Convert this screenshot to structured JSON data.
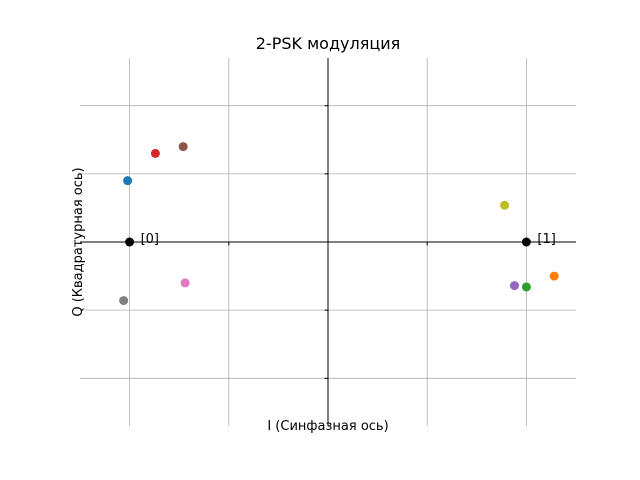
{
  "chart_data": {
    "type": "scatter",
    "title": "2-PSK модуляция",
    "xlabel": "I (Синфазная ось)",
    "ylabel": "Q (Квадратурная ось)",
    "xlim": [
      -1.25,
      1.25
    ],
    "ylim": [
      -1.35,
      1.35
    ],
    "xticks": [
      -1.0,
      -0.5,
      0.0,
      0.5,
      1.0
    ],
    "yticks": [
      -1.0,
      -0.5,
      0.0,
      0.5,
      1.0
    ],
    "grid": true,
    "axes_style": "centered spines",
    "constellation": [
      {
        "label": "[0]",
        "x": -1.0,
        "y": 0.0,
        "color": "#000000"
      },
      {
        "label": "[1]",
        "x": 1.0,
        "y": 0.0,
        "color": "#000000"
      }
    ],
    "points": [
      {
        "x": -1.01,
        "y": 0.45,
        "color": "#1f77b4"
      },
      {
        "x": 1.14,
        "y": -0.25,
        "color": "#ff7f0e"
      },
      {
        "x": 1.0,
        "y": -0.33,
        "color": "#2ca02c"
      },
      {
        "x": -0.87,
        "y": 0.65,
        "color": "#d62728"
      },
      {
        "x": 0.94,
        "y": -0.32,
        "color": "#9467bd"
      },
      {
        "x": -0.73,
        "y": 0.7,
        "color": "#8c564b"
      },
      {
        "x": -0.72,
        "y": -0.3,
        "color": "#e377c2"
      },
      {
        "x": -1.03,
        "y": -0.43,
        "color": "#7f7f7f"
      },
      {
        "x": 0.89,
        "y": 0.27,
        "color": "#bcbd22"
      }
    ]
  }
}
